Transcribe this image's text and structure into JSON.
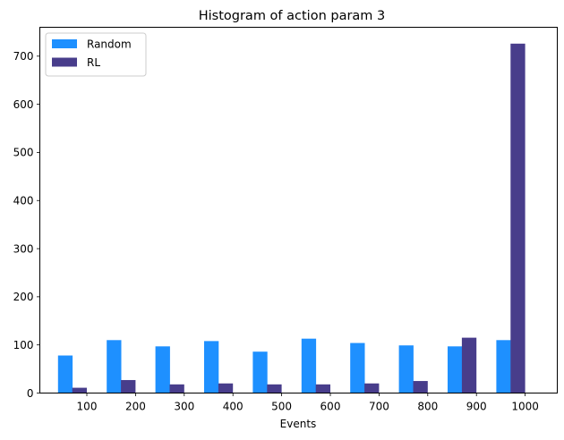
{
  "chart_data": {
    "type": "bar",
    "title": "Histogram of action param 3",
    "xlabel": "Events",
    "ylabel": "",
    "categories": [
      "100",
      "200",
      "300",
      "400",
      "500",
      "600",
      "700",
      "800",
      "900",
      "1000"
    ],
    "series": [
      {
        "name": "Random",
        "color": "#1e90ff",
        "values": [
          78,
          110,
          97,
          108,
          86,
          113,
          104,
          99,
          97,
          110
        ]
      },
      {
        "name": "RL",
        "color": "#483d8b",
        "values": [
          11,
          27,
          18,
          20,
          18,
          18,
          20,
          25,
          115,
          726
        ]
      }
    ],
    "ylim": [
      0,
      760
    ],
    "yticks": [
      0,
      100,
      200,
      300,
      400,
      500,
      600,
      700
    ],
    "grid": false,
    "legend": "upper-left"
  }
}
